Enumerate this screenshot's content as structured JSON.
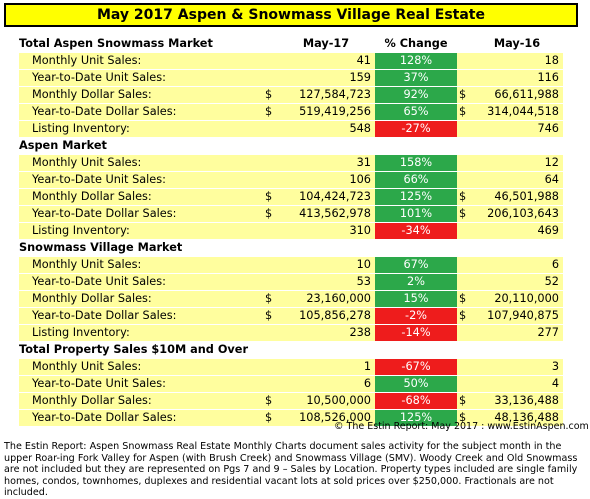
{
  "title": "May 2017 Aspen & Snowmass Village Real Estate",
  "columns": {
    "current": "May-17",
    "change": "% Change",
    "prior": "May-16"
  },
  "sections": [
    {
      "heading": "Total Aspen Snowmass Market",
      "rows": [
        {
          "label": "Monthly Unit Sales:",
          "cur_dollar": "",
          "cur": "41",
          "pct": "128%",
          "dir": "up",
          "prior_dollar": "",
          "prior": "18"
        },
        {
          "label": "Year-to-Date Unit Sales:",
          "cur_dollar": "",
          "cur": "159",
          "pct": "37%",
          "dir": "up",
          "prior_dollar": "",
          "prior": "116"
        },
        {
          "label": "Monthly Dollar Sales:",
          "cur_dollar": "$",
          "cur": "127,584,723",
          "pct": "92%",
          "dir": "up",
          "prior_dollar": "$",
          "prior": "66,611,988"
        },
        {
          "label": "Year-to-Date Dollar Sales:",
          "cur_dollar": "$",
          "cur": "519,419,256",
          "pct": "65%",
          "dir": "up",
          "prior_dollar": "$",
          "prior": "314,044,518"
        },
        {
          "label": "Listing Inventory:",
          "cur_dollar": "",
          "cur": "548",
          "pct": "-27%",
          "dir": "down",
          "prior_dollar": "",
          "prior": "746"
        }
      ]
    },
    {
      "heading": "Aspen Market",
      "rows": [
        {
          "label": "Monthly Unit Sales:",
          "cur_dollar": "",
          "cur": "31",
          "pct": "158%",
          "dir": "up",
          "prior_dollar": "",
          "prior": "12"
        },
        {
          "label": "Year-to-Date Unit Sales:",
          "cur_dollar": "",
          "cur": "106",
          "pct": "66%",
          "dir": "up",
          "prior_dollar": "",
          "prior": "64"
        },
        {
          "label": "Monthly Dollar Sales:",
          "cur_dollar": "$",
          "cur": "104,424,723",
          "pct": "125%",
          "dir": "up",
          "prior_dollar": "$",
          "prior": "46,501,988"
        },
        {
          "label": "Year-to-Date Dollar Sales:",
          "cur_dollar": "$",
          "cur": "413,562,978",
          "pct": "101%",
          "dir": "up",
          "prior_dollar": "$",
          "prior": "206,103,643"
        },
        {
          "label": "Listing Inventory:",
          "cur_dollar": "",
          "cur": "310",
          "pct": "-34%",
          "dir": "down",
          "prior_dollar": "",
          "prior": "469"
        }
      ]
    },
    {
      "heading": "Snowmass Village Market",
      "rows": [
        {
          "label": "Monthly Unit Sales:",
          "cur_dollar": "",
          "cur": "10",
          "pct": "67%",
          "dir": "up",
          "prior_dollar": "",
          "prior": "6"
        },
        {
          "label": "Year-to-Date Unit Sales:",
          "cur_dollar": "",
          "cur": "53",
          "pct": "2%",
          "dir": "up",
          "prior_dollar": "",
          "prior": "52"
        },
        {
          "label": "Monthly Dollar Sales:",
          "cur_dollar": "$",
          "cur": "23,160,000",
          "pct": "15%",
          "dir": "up",
          "prior_dollar": "$",
          "prior": "20,110,000"
        },
        {
          "label": "Year-to-Date Dollar Sales:",
          "cur_dollar": "$",
          "cur": "105,856,278",
          "pct": "-2%",
          "dir": "down",
          "prior_dollar": "$",
          "prior": "107,940,875"
        },
        {
          "label": "Listing Inventory:",
          "cur_dollar": "",
          "cur": "238",
          "pct": "-14%",
          "dir": "down",
          "prior_dollar": "",
          "prior": "277"
        }
      ]
    },
    {
      "heading": "Total Property Sales $10M and Over",
      "rows": [
        {
          "label": "Monthly Unit Sales:",
          "cur_dollar": "",
          "cur": "1",
          "pct": "-67%",
          "dir": "down",
          "prior_dollar": "",
          "prior": "3"
        },
        {
          "label": "Year-to-Date Unit Sales:",
          "cur_dollar": "",
          "cur": "6",
          "pct": "50%",
          "dir": "up",
          "prior_dollar": "",
          "prior": "4"
        },
        {
          "label": "Monthly Dollar Sales:",
          "cur_dollar": "$",
          "cur": "10,500,000",
          "pct": "-68%",
          "dir": "down",
          "prior_dollar": "$",
          "prior": "33,136,488"
        },
        {
          "label": "Year-to-Date Dollar Sales:",
          "cur_dollar": "$",
          "cur": "108,526,000",
          "pct": "125%",
          "dir": "up",
          "prior_dollar": "$",
          "prior": "48,136,488"
        }
      ]
    }
  ],
  "copyright": "© The Estin Report: May 2017 : www.EstinAspen.com",
  "footnote": "The Estin Report: Aspen Snowmass Real Estate Monthly Charts document sales activity for the subject month in the upper Roar-ing Fork Valley for Aspen (with Brush Creek) and Snowmass Village (SMV). Woody Creek and Old Snowmass are not included but they are represented on Pgs 7 and 9 – Sales by Location. Property types included are single family homes, condos, townhomes, duplexes and residential vacant lots at sold prices over $250,000. Fractionals are not included.",
  "colors": {
    "title_bg": "#ffff00",
    "row_bg": "#fffe9e",
    "increase": "#2ca84a",
    "decrease": "#ee1c1c"
  }
}
